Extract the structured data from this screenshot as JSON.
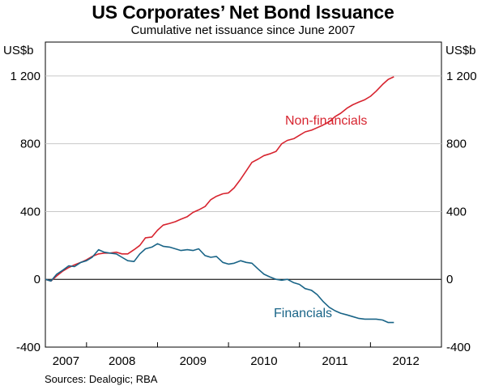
{
  "chart_data": {
    "type": "line",
    "title": "US Corporates’ Net Bond Issuance",
    "subtitle": "Cumulative net issuance since June 2007",
    "y_unit_left": "US$b",
    "y_unit_right": "US$b",
    "ylim": [
      -400,
      1400
    ],
    "yticks": [
      -400,
      0,
      400,
      800,
      1200
    ],
    "ytick_labels": [
      "-400",
      "0",
      "400",
      "800",
      "1 200"
    ],
    "xlim": [
      2007.42,
      2013.0
    ],
    "year_labels": [
      "2007",
      "2008",
      "2009",
      "2010",
      "2011",
      "2012"
    ],
    "source": "Sources: Dealogic; RBA",
    "series": [
      {
        "name": "Non-financials",
        "color": "#d7242f",
        "label_text": "Non-financials",
        "x": [
          2007.42,
          2007.5,
          2007.58,
          2007.67,
          2007.75,
          2007.83,
          2007.92,
          2008.0,
          2008.08,
          2008.17,
          2008.25,
          2008.33,
          2008.42,
          2008.5,
          2008.58,
          2008.67,
          2008.75,
          2008.83,
          2008.92,
          2009.0,
          2009.08,
          2009.17,
          2009.25,
          2009.33,
          2009.42,
          2009.5,
          2009.58,
          2009.67,
          2009.75,
          2009.83,
          2009.92,
          2010.0,
          2010.08,
          2010.17,
          2010.25,
          2010.33,
          2010.42,
          2010.5,
          2010.58,
          2010.67,
          2010.75,
          2010.83,
          2010.92,
          2011.0,
          2011.08,
          2011.17,
          2011.25,
          2011.33,
          2011.42,
          2011.5,
          2011.58,
          2011.67,
          2011.75,
          2011.83,
          2011.92,
          2012.0,
          2012.08,
          2012.17,
          2012.25,
          2012.33
        ],
        "values": [
          0,
          -10,
          20,
          50,
          70,
          85,
          100,
          115,
          135,
          150,
          155,
          155,
          160,
          150,
          150,
          175,
          200,
          245,
          250,
          290,
          320,
          330,
          340,
          355,
          370,
          395,
          410,
          430,
          470,
          490,
          505,
          510,
          540,
          590,
          640,
          690,
          710,
          730,
          740,
          755,
          800,
          820,
          830,
          850,
          870,
          880,
          895,
          910,
          930,
          960,
          980,
          1010,
          1030,
          1045,
          1060,
          1080,
          1110,
          1150,
          1180,
          1195
        ]
      },
      {
        "name": "Financials",
        "color": "#196487",
        "label_text": "Financials",
        "x": [
          2007.42,
          2007.5,
          2007.58,
          2007.67,
          2007.75,
          2007.83,
          2007.92,
          2008.0,
          2008.08,
          2008.17,
          2008.25,
          2008.33,
          2008.42,
          2008.5,
          2008.58,
          2008.67,
          2008.75,
          2008.83,
          2008.92,
          2009.0,
          2009.08,
          2009.17,
          2009.25,
          2009.33,
          2009.42,
          2009.5,
          2009.58,
          2009.67,
          2009.75,
          2009.83,
          2009.92,
          2010.0,
          2010.08,
          2010.17,
          2010.25,
          2010.33,
          2010.42,
          2010.5,
          2010.58,
          2010.67,
          2010.75,
          2010.83,
          2010.92,
          2011.0,
          2011.08,
          2011.17,
          2011.25,
          2011.33,
          2011.42,
          2011.5,
          2011.58,
          2011.67,
          2011.75,
          2011.83,
          2011.92,
          2012.0,
          2012.08,
          2012.17,
          2012.25,
          2012.33
        ],
        "values": [
          0,
          -10,
          30,
          55,
          80,
          75,
          100,
          110,
          130,
          175,
          160,
          155,
          150,
          130,
          110,
          105,
          150,
          180,
          190,
          210,
          195,
          190,
          180,
          170,
          175,
          170,
          180,
          140,
          130,
          135,
          100,
          90,
          95,
          110,
          100,
          95,
          60,
          30,
          15,
          0,
          -5,
          0,
          -20,
          -30,
          -55,
          -65,
          -90,
          -130,
          -165,
          -185,
          -200,
          -210,
          -220,
          -230,
          -235,
          -235,
          -235,
          -240,
          -255,
          -255
        ]
      }
    ]
  }
}
